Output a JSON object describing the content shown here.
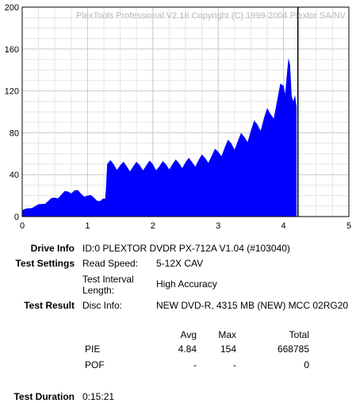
{
  "chart_data": {
    "type": "area",
    "copyright": "PlexTools Professional V2.16 Copyright (C) 1999-2004 Plextor SA/NV",
    "xlim": [
      0,
      5
    ],
    "ylim": [
      0,
      200
    ],
    "x_ticks": [
      "0",
      "1",
      "2",
      "3",
      "4",
      "5"
    ],
    "y_ticks": [
      "0",
      "40",
      "80",
      "120",
      "160",
      "200"
    ],
    "end_marker_x": 4.22,
    "fill_color": "#0000ff",
    "grid": true,
    "series": [
      {
        "x": [
          0,
          0.1,
          0.2,
          0.3,
          0.4,
          0.5,
          0.6,
          0.7,
          0.8,
          0.9,
          1.0,
          1.1,
          1.2,
          1.27,
          1.3,
          1.4,
          1.5,
          1.6,
          1.7,
          1.8,
          1.9,
          2.0,
          2.1,
          2.2,
          2.3,
          2.4,
          2.5,
          2.6,
          2.7,
          2.8,
          2.9,
          3.0,
          3.1,
          3.2,
          3.3,
          3.4,
          3.5,
          3.6,
          3.7,
          3.8,
          3.9,
          4.0,
          4.05,
          4.1,
          4.15,
          4.2
        ],
        "values": [
          6,
          8,
          10,
          12,
          15,
          18,
          21,
          24,
          25,
          22,
          20,
          18,
          15,
          17,
          50,
          50,
          49,
          48,
          48,
          49,
          49,
          50,
          48,
          50,
          50,
          51,
          52,
          52,
          54,
          56,
          58,
          62,
          66,
          70,
          72,
          76,
          82,
          88,
          94,
          98,
          110,
          125,
          135,
          145,
          110,
          105
        ]
      }
    ]
  },
  "drive_info": {
    "label": "Drive Info",
    "value": "ID:0 PLEXTOR DVDR PX-712A V1.04 (#103040)"
  },
  "test_settings": {
    "label": "Test Settings",
    "read_speed_label": "Read Speed:",
    "read_speed_value": "5-12X CAV",
    "interval_label_1": "Test Interval",
    "interval_label_2": "Length:",
    "interval_value": "High Accuracy"
  },
  "test_result": {
    "label": "Test Result",
    "disc_info_label": "Disc Info:",
    "disc_info_value": "NEW DVD-R, 4315 MB (NEW) MCC 02RG20",
    "headers": {
      "avg": "Avg",
      "max": "Max",
      "total": "Total"
    },
    "rows": [
      {
        "name": "PIE",
        "avg": "4.84",
        "max": "154",
        "total": "668785"
      },
      {
        "name": "POF",
        "avg": "-",
        "max": "-",
        "total": "0"
      }
    ]
  },
  "test_duration": {
    "label": "Test Duration",
    "value": "0:15:21"
  }
}
